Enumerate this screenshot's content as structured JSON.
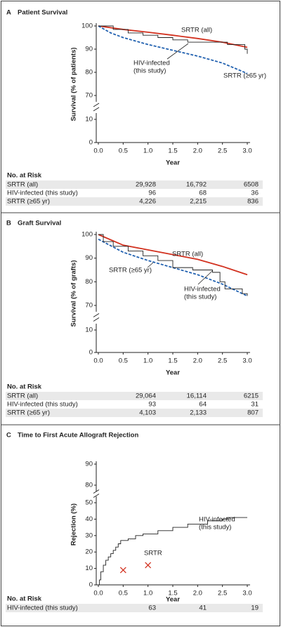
{
  "chart_data": [
    {
      "type": "line",
      "panel_label": "A",
      "title": "Patient Survival",
      "ylabel": "Survival (% of patients)",
      "xlabel": "Year",
      "xlim": [
        0,
        3
      ],
      "xticks": [
        {
          "value": 0,
          "label": "0.0"
        },
        0.5,
        {
          "value": 1,
          "label": "1.0"
        },
        1.5,
        {
          "value": 2,
          "label": "2.0"
        },
        2.5,
        {
          "value": 3,
          "label": "3.0"
        }
      ],
      "ylim": [
        0,
        100
      ],
      "yticks": [
        0,
        10,
        70,
        80,
        90,
        100
      ],
      "y_break": [
        10,
        70
      ],
      "series": [
        {
          "name": "SRTR (all)",
          "color": "#d2311f",
          "style": "solid",
          "x": [
            0,
            0.5,
            1,
            1.5,
            2,
            2.5,
            3
          ],
          "values": [
            100,
            98.5,
            97.3,
            96,
            94.6,
            93,
            90.8
          ]
        },
        {
          "name": "SRTR (≥65 yr)",
          "color": "#2161b0",
          "style": "dashed",
          "x": [
            0,
            0.25,
            0.5,
            1,
            1.5,
            2,
            2.5,
            3
          ],
          "values": [
            100,
            97,
            95,
            92,
            89.5,
            87,
            84,
            79.5
          ]
        },
        {
          "name": "HIV-infected (this study)",
          "color": "#222222",
          "style": "step",
          "x": [
            0,
            0.3,
            0.6,
            0.9,
            1.2,
            1.5,
            1.8,
            2.6,
            2.95,
            3
          ],
          "values": [
            100,
            98.5,
            97,
            96,
            95,
            94,
            93,
            92,
            90,
            88
          ]
        }
      ],
      "annotations": [
        [
          "SRTR (all)"
        ],
        [
          "HIV-infected",
          "(this study)"
        ],
        [
          "SRTR (≥65 yr)"
        ]
      ],
      "risk_table": {
        "title": "No. at Risk",
        "rows": [
          {
            "label": "SRTR (all)",
            "values": [
              "29,928",
              "16,792",
              "6508"
            ]
          },
          {
            "label": "HIV-infected (this study)",
            "values": [
              "96",
              "68",
              "36"
            ]
          },
          {
            "label": "SRTR (≥65 yr)",
            "values": [
              "4,226",
              "2,215",
              "836"
            ]
          }
        ]
      }
    },
    {
      "type": "line",
      "panel_label": "B",
      "title": "Graft Survival",
      "ylabel": "Survival (% of grafts)",
      "xlabel": "Year",
      "xlim": [
        0,
        3
      ],
      "xticks": [
        {
          "value": 0,
          "label": "0.0"
        },
        0.5,
        {
          "value": 1,
          "label": "1.0"
        },
        1.5,
        {
          "value": 2,
          "label": "2.0"
        },
        2.5,
        {
          "value": 3,
          "label": "3.0"
        }
      ],
      "ylim": [
        0,
        100
      ],
      "yticks": [
        0,
        10,
        70,
        80,
        90,
        100
      ],
      "y_break": [
        10,
        70
      ],
      "series": [
        {
          "name": "SRTR (all)",
          "color": "#d2311f",
          "style": "solid",
          "x": [
            0,
            0.5,
            1,
            1.5,
            2,
            2.5,
            3
          ],
          "values": [
            100,
            95.5,
            93.5,
            91.5,
            89.5,
            86.5,
            83
          ]
        },
        {
          "name": "SRTR (≥65 yr)",
          "color": "#2161b0",
          "style": "dashed",
          "x": [
            0,
            0.5,
            1,
            1.5,
            2,
            2.5,
            3
          ],
          "values": [
            98,
            92.5,
            89,
            86,
            83,
            79,
            74
          ]
        },
        {
          "name": "HIV-infected (this study)",
          "color": "#222222",
          "style": "step",
          "x": [
            0,
            0.1,
            0.3,
            0.6,
            0.9,
            1.2,
            1.5,
            1.9,
            2.3,
            2.45,
            2.55,
            2.9,
            3
          ],
          "values": [
            100,
            97,
            95,
            93,
            91,
            89,
            86,
            85,
            84,
            80,
            77,
            75,
            74
          ]
        }
      ],
      "annotations": [
        [
          "SRTR (all)"
        ],
        [
          "SRTR (≥65 yr)"
        ],
        [
          "HIV-infected",
          "(this study)"
        ]
      ],
      "risk_table": {
        "title": "No. at Risk",
        "rows": [
          {
            "label": "SRTR (all)",
            "values": [
              "29,064",
              "16,114",
              "6215"
            ]
          },
          {
            "label": "HIV-infected (this study)",
            "values": [
              "93",
              "64",
              "31"
            ]
          },
          {
            "label": "SRTR (≥65 yr)",
            "values": [
              "4,103",
              "2,133",
              "807"
            ]
          }
        ]
      }
    },
    {
      "type": "line",
      "panel_label": "C",
      "title": "Time to First Acute Allograft Rejection",
      "ylabel": "Rejection (%)",
      "xlabel": "Year",
      "xlim": [
        0,
        3
      ],
      "xticks": [
        {
          "value": 0,
          "label": "0.0"
        },
        0.5,
        {
          "value": 1,
          "label": "1.0"
        },
        1.5,
        {
          "value": 2,
          "label": "2.0"
        },
        2.5,
        {
          "value": 3,
          "label": "3.0"
        }
      ],
      "ylim": [
        0,
        90
      ],
      "yticks": [
        0,
        10,
        20,
        30,
        40,
        50,
        80,
        90
      ],
      "y_break": [
        50,
        80
      ],
      "series": [
        {
          "name": "HIV-infected (this study)",
          "color": "#222222",
          "style": "step",
          "x": [
            0,
            0.02,
            0.05,
            0.1,
            0.15,
            0.2,
            0.25,
            0.3,
            0.35,
            0.4,
            0.45,
            0.6,
            0.75,
            0.9,
            1.2,
            1.5,
            1.8,
            2.2,
            2.5,
            2.6,
            3
          ],
          "values": [
            0,
            3,
            8,
            12,
            15,
            17,
            19,
            21,
            23,
            25,
            27,
            28,
            30,
            31,
            33,
            35,
            37,
            39,
            40,
            41,
            41
          ]
        },
        {
          "name": "SRTR",
          "color": "#d2311f",
          "style": "markers",
          "x": [
            0.5,
            1
          ],
          "values": [
            9,
            12
          ]
        }
      ],
      "annotations": [
        [
          "HIV-infected",
          "(this study)"
        ],
        [
          "SRTR"
        ]
      ],
      "risk_table": {
        "title": "No. at Risk",
        "rows": [
          {
            "label": "HIV-infected (this study)",
            "values": [
              "63",
              "41",
              "19"
            ]
          }
        ]
      }
    }
  ]
}
